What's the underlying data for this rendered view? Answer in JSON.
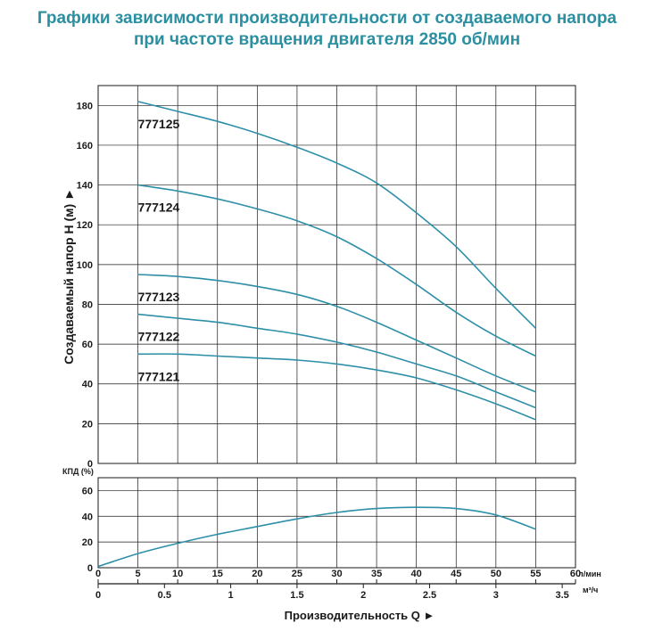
{
  "title_line1": "Графики зависимости производительности от создаваемого напора",
  "title_line2": "при частоте вращения двигателя 2850 об/мин",
  "chart_data": [
    {
      "type": "line",
      "ylabel": "Создаваемый напор H (м) ►",
      "xlim": [
        0,
        60
      ],
      "ylim": [
        0,
        190
      ],
      "yticks": [
        0,
        20,
        40,
        60,
        80,
        100,
        120,
        140,
        160,
        180
      ],
      "grid": true,
      "series": [
        {
          "name": "777125",
          "x": [
            5,
            10,
            15,
            20,
            25,
            30,
            35,
            40,
            45,
            50,
            55
          ],
          "y": [
            182,
            177,
            172,
            166,
            159,
            151,
            141,
            126,
            109,
            88,
            68
          ]
        },
        {
          "name": "777124",
          "x": [
            5,
            10,
            15,
            20,
            25,
            30,
            35,
            40,
            45,
            50,
            55
          ],
          "y": [
            140,
            137,
            133,
            128,
            122,
            114,
            103,
            90,
            76,
            64,
            54
          ]
        },
        {
          "name": "777123",
          "x": [
            5,
            10,
            15,
            20,
            25,
            30,
            35,
            40,
            45,
            50,
            55
          ],
          "y": [
            95,
            94,
            92,
            89,
            85,
            79,
            71,
            62,
            53,
            44,
            36
          ]
        },
        {
          "name": "777122",
          "x": [
            5,
            10,
            15,
            20,
            25,
            30,
            35,
            40,
            45,
            50,
            55
          ],
          "y": [
            75,
            73,
            71,
            68,
            65,
            61,
            56,
            50,
            44,
            36,
            28
          ]
        },
        {
          "name": "777121",
          "x": [
            5,
            10,
            15,
            20,
            25,
            30,
            35,
            40,
            45,
            50,
            55
          ],
          "y": [
            55,
            55,
            54,
            53,
            52,
            50,
            47,
            43,
            37,
            30,
            22
          ]
        }
      ]
    },
    {
      "type": "line",
      "ylabel": "КПД (%)",
      "xlabel": "Производительность Q ►",
      "xlim": [
        0,
        60
      ],
      "ylim": [
        0,
        70
      ],
      "yticks": [
        0,
        20,
        40,
        60
      ],
      "grid": true,
      "x_primary": {
        "unit": "л/мин",
        "ticks": [
          0,
          5,
          10,
          15,
          20,
          25,
          30,
          35,
          40,
          45,
          50,
          55,
          60
        ]
      },
      "x_secondary": {
        "unit": "м³/ч",
        "ticks": [
          0,
          0.5,
          1,
          1.5,
          2,
          2.5,
          3,
          3.5
        ]
      },
      "series": [
        {
          "x": [
            0,
            5,
            10,
            15,
            20,
            25,
            30,
            35,
            40,
            45,
            50,
            55
          ],
          "y": [
            1,
            11,
            19,
            26,
            32,
            38,
            43,
            46,
            47,
            46,
            41,
            30
          ]
        }
      ]
    }
  ],
  "colors": {
    "title": "#2a8fa0",
    "curve": "#2e8fa8",
    "grid": "#1a1a1a"
  }
}
